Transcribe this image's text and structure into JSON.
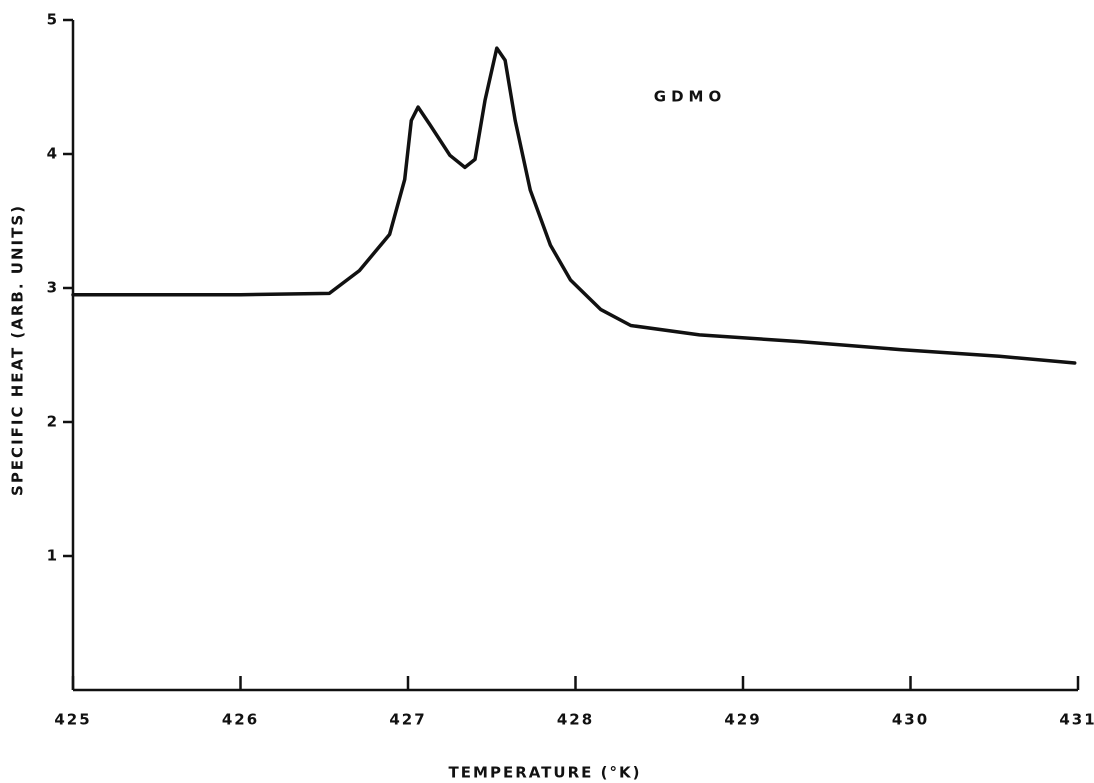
{
  "chart_data": {
    "type": "line",
    "annotation": "GDMO",
    "xlabel": "TEMPERATURE (°K)",
    "ylabel": "SPECIFIC HEAT (ARB. UNITS)",
    "xlim": [
      425,
      431
    ],
    "ylim": [
      0,
      5
    ],
    "xticks": [
      425,
      426,
      427,
      428,
      429,
      430,
      431
    ],
    "yticks": [
      1,
      2,
      3,
      4,
      5
    ],
    "series": [
      {
        "color": "#111111",
        "x": [
          425,
          426,
          426.53,
          426.71,
          426.89,
          426.98,
          427.02,
          427.06,
          427.13,
          427.25,
          427.34,
          427.4,
          427.46,
          427.53,
          427.58,
          427.64,
          427.73,
          427.85,
          427.97,
          428.15,
          428.33,
          428.74,
          429.34,
          429.94,
          430.53,
          430.98
        ],
        "values": [
          2.95,
          2.95,
          2.96,
          3.13,
          3.4,
          3.81,
          4.25,
          4.35,
          4.22,
          3.99,
          3.9,
          3.96,
          4.4,
          4.79,
          4.7,
          4.25,
          3.73,
          3.32,
          3.06,
          2.84,
          2.72,
          2.65,
          2.6,
          2.54,
          2.49,
          2.44
        ]
      }
    ]
  }
}
